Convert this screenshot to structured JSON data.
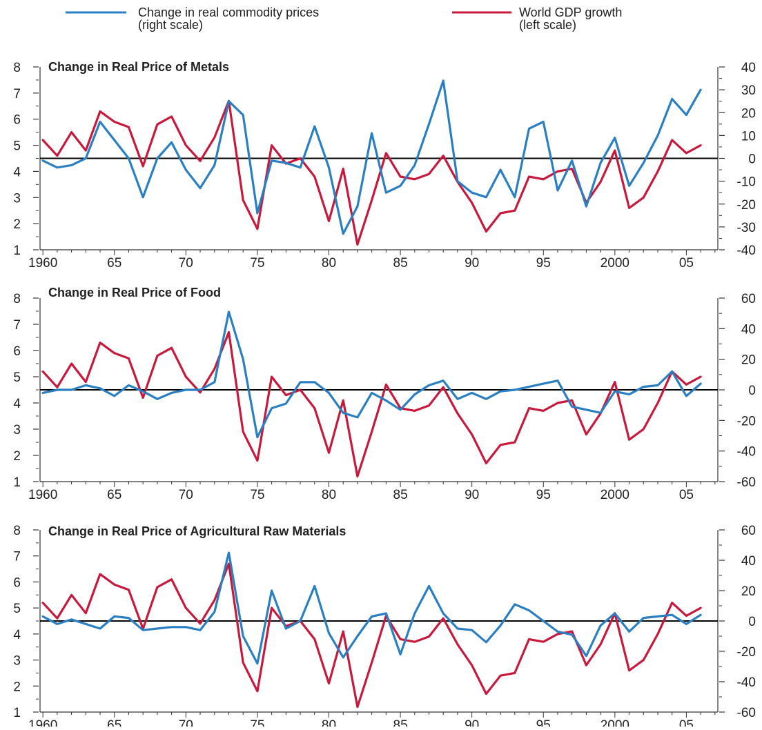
{
  "legend": {
    "items": [
      {
        "line1": "Change in real commodity prices",
        "line2": "(right scale)",
        "color": "#2a7fc3"
      },
      {
        "line1": "World GDP growth",
        "line2": "(left scale)",
        "color": "#c8193c"
      }
    ]
  },
  "x_tick_labels": [
    "1960",
    "65",
    "70",
    "75",
    "80",
    "85",
    "90",
    "95",
    "2000",
    "05"
  ],
  "chart_data": [
    {
      "type": "line",
      "title": "Change in Real Price of Metals",
      "x": [
        1960,
        1961,
        1962,
        1963,
        1964,
        1965,
        1966,
        1967,
        1968,
        1969,
        1970,
        1971,
        1972,
        1973,
        1974,
        1975,
        1976,
        1977,
        1978,
        1979,
        1980,
        1981,
        1982,
        1983,
        1984,
        1985,
        1986,
        1987,
        1988,
        1989,
        1990,
        1991,
        1992,
        1993,
        1994,
        1995,
        1996,
        1997,
        1998,
        1999,
        2000,
        2001,
        2002,
        2003,
        2004,
        2005,
        2006
      ],
      "xlim": [
        1959.8,
        2007.2
      ],
      "left_ylim": [
        1,
        8
      ],
      "left_yticks": [
        1,
        2,
        3,
        4,
        5,
        6,
        7,
        8
      ],
      "right_ylim": [
        -40,
        40
      ],
      "right_yticks": [
        -40,
        -30,
        -20,
        -10,
        0,
        10,
        20,
        30,
        40
      ],
      "zero_line": 0,
      "series": [
        {
          "name": "World GDP growth",
          "axis": "left",
          "color": "#c8193c",
          "values": [
            5.2,
            4.6,
            5.5,
            4.8,
            6.3,
            5.9,
            5.7,
            4.2,
            5.8,
            6.1,
            5.0,
            4.4,
            5.3,
            6.7,
            2.9,
            1.8,
            5.0,
            4.3,
            4.5,
            3.8,
            2.1,
            4.1,
            1.2,
            2.9,
            4.7,
            3.8,
            3.7,
            3.9,
            4.6,
            3.6,
            2.8,
            1.7,
            2.4,
            2.5,
            3.8,
            3.7,
            4.0,
            4.1,
            2.8,
            3.6,
            4.8,
            2.6,
            3.0,
            4.0,
            5.2,
            4.7,
            5.0
          ]
        },
        {
          "name": "Change in real commodity prices",
          "axis": "right",
          "color": "#2a7fc3",
          "values": [
            -1,
            -4,
            -3,
            0,
            16,
            8,
            0,
            -17,
            0,
            7,
            -5,
            -13,
            -3,
            25,
            19,
            -24,
            -1,
            -2,
            -4,
            14,
            -4,
            -33,
            -21,
            11,
            -15,
            -12,
            -3,
            15,
            34,
            -10,
            -15,
            -17,
            -5,
            -17,
            13,
            16,
            -14,
            -1,
            -21,
            -2,
            9,
            -12,
            -2,
            10,
            26,
            19,
            30
          ]
        }
      ]
    },
    {
      "type": "line",
      "title": "Change in Real Price of Food",
      "x": [
        1960,
        1961,
        1962,
        1963,
        1964,
        1965,
        1966,
        1967,
        1968,
        1969,
        1970,
        1971,
        1972,
        1973,
        1974,
        1975,
        1976,
        1977,
        1978,
        1979,
        1980,
        1981,
        1982,
        1983,
        1984,
        1985,
        1986,
        1987,
        1988,
        1989,
        1990,
        1991,
        1992,
        1993,
        1994,
        1995,
        1996,
        1997,
        1998,
        1999,
        2000,
        2001,
        2002,
        2003,
        2004,
        2005,
        2006
      ],
      "xlim": [
        1959.8,
        2007.2
      ],
      "left_ylim": [
        1,
        8
      ],
      "left_yticks": [
        1,
        2,
        3,
        4,
        5,
        6,
        7,
        8
      ],
      "right_ylim": [
        -60,
        60
      ],
      "right_yticks": [
        -60,
        -40,
        -20,
        0,
        20,
        40,
        60
      ],
      "zero_line": 0,
      "series": [
        {
          "name": "World GDP growth",
          "axis": "left",
          "color": "#c8193c",
          "values": [
            5.2,
            4.6,
            5.5,
            4.8,
            6.3,
            5.9,
            5.7,
            4.2,
            5.8,
            6.1,
            5.0,
            4.4,
            5.3,
            6.7,
            2.9,
            1.8,
            5.0,
            4.3,
            4.5,
            3.8,
            2.1,
            4.1,
            1.2,
            2.9,
            4.7,
            3.8,
            3.7,
            3.9,
            4.6,
            3.6,
            2.8,
            1.7,
            2.4,
            2.5,
            3.8,
            3.7,
            4.0,
            4.1,
            2.8,
            3.6,
            4.8,
            2.6,
            3.0,
            4.0,
            5.2,
            4.7,
            5.0
          ]
        },
        {
          "name": "Change in real commodity prices",
          "axis": "right",
          "color": "#2a7fc3",
          "values": [
            -2,
            0,
            0,
            3,
            1,
            -4,
            3,
            -1,
            -6,
            -2,
            0,
            0,
            5,
            51,
            20,
            -31,
            -12,
            -9,
            5,
            5,
            -2,
            -15,
            -18,
            -2,
            -7,
            -13,
            -3,
            3,
            6,
            -6,
            -2,
            -6,
            -1,
            0,
            2,
            4,
            6,
            -11,
            -13,
            -15,
            -1,
            -3,
            2,
            3,
            12,
            -4,
            4
          ]
        }
      ]
    },
    {
      "type": "line",
      "title": "Change in Real Price of Agricultural Raw Materials",
      "x": [
        1960,
        1961,
        1962,
        1963,
        1964,
        1965,
        1966,
        1967,
        1968,
        1969,
        1970,
        1971,
        1972,
        1973,
        1974,
        1975,
        1976,
        1977,
        1978,
        1979,
        1980,
        1981,
        1982,
        1983,
        1984,
        1985,
        1986,
        1987,
        1988,
        1989,
        1990,
        1991,
        1992,
        1993,
        1994,
        1995,
        1996,
        1997,
        1998,
        1999,
        2000,
        2001,
        2002,
        2003,
        2004,
        2005,
        2006
      ],
      "xlim": [
        1959.8,
        2007.2
      ],
      "left_ylim": [
        1,
        8
      ],
      "left_yticks": [
        1,
        2,
        3,
        4,
        5,
        6,
        7,
        8
      ],
      "right_ylim": [
        -60,
        60
      ],
      "right_yticks": [
        -60,
        -40,
        -20,
        0,
        20,
        40,
        60
      ],
      "zero_line": 0,
      "series": [
        {
          "name": "World GDP growth",
          "axis": "left",
          "color": "#c8193c",
          "values": [
            5.2,
            4.6,
            5.5,
            4.8,
            6.3,
            5.9,
            5.7,
            4.2,
            5.8,
            6.1,
            5.0,
            4.4,
            5.3,
            6.7,
            2.9,
            1.8,
            5.0,
            4.3,
            4.5,
            3.8,
            2.1,
            4.1,
            1.2,
            2.9,
            4.7,
            3.8,
            3.7,
            3.9,
            4.6,
            3.6,
            2.8,
            1.7,
            2.4,
            2.5,
            3.8,
            3.7,
            4.0,
            4.1,
            2.8,
            3.6,
            4.8,
            2.6,
            3.0,
            4.0,
            5.2,
            4.7,
            5.0
          ]
        },
        {
          "name": "Change in real commodity prices",
          "axis": "right",
          "color": "#2a7fc3",
          "values": [
            3,
            -2,
            1,
            -2,
            -5,
            3,
            2,
            -6,
            -5,
            -4,
            -4,
            -6,
            6,
            45,
            -10,
            -28,
            20,
            -5,
            0,
            23,
            -8,
            -24,
            -10,
            3,
            5,
            -22,
            5,
            23,
            5,
            -5,
            -6,
            -14,
            -3,
            11,
            7,
            0,
            -7,
            -9,
            -23,
            -3,
            5,
            -7,
            2,
            3,
            4,
            -2,
            4
          ]
        }
      ]
    }
  ]
}
